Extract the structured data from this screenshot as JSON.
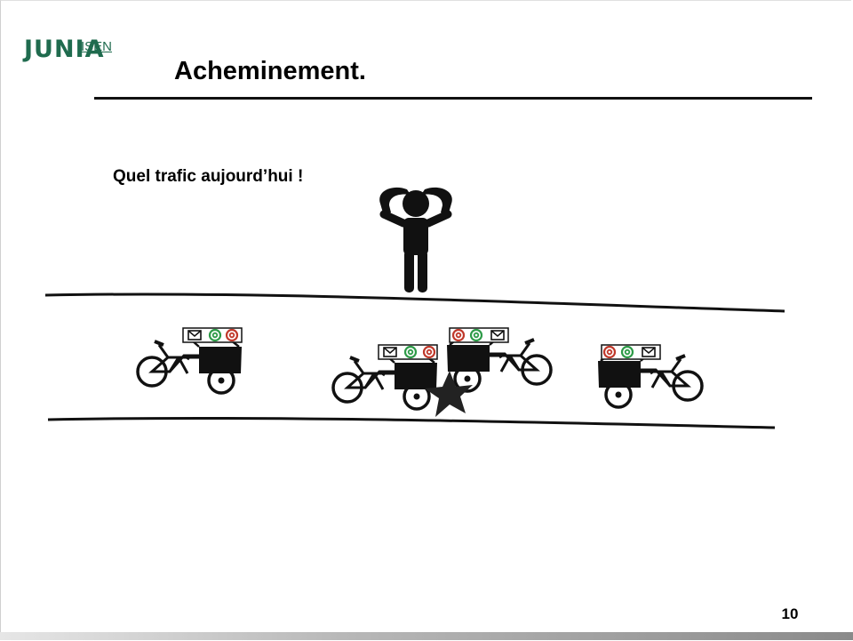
{
  "logo": {
    "brand": "JUNIA",
    "school": "ISEN"
  },
  "title": "Acheminement.",
  "caption": "Quel trafic aujourd’hui !",
  "page_number": "10",
  "icons": {
    "person": "stressed-person-icon",
    "bike": "cargo-bike-icon",
    "collision": "collision-star-icon",
    "envelope": "envelope-icon",
    "at": "at-sign-icon"
  },
  "colors": {
    "brand_green": "#1f6b4e",
    "at_red": "#c0392b",
    "at_green": "#2e9b48",
    "ink": "#111111"
  }
}
